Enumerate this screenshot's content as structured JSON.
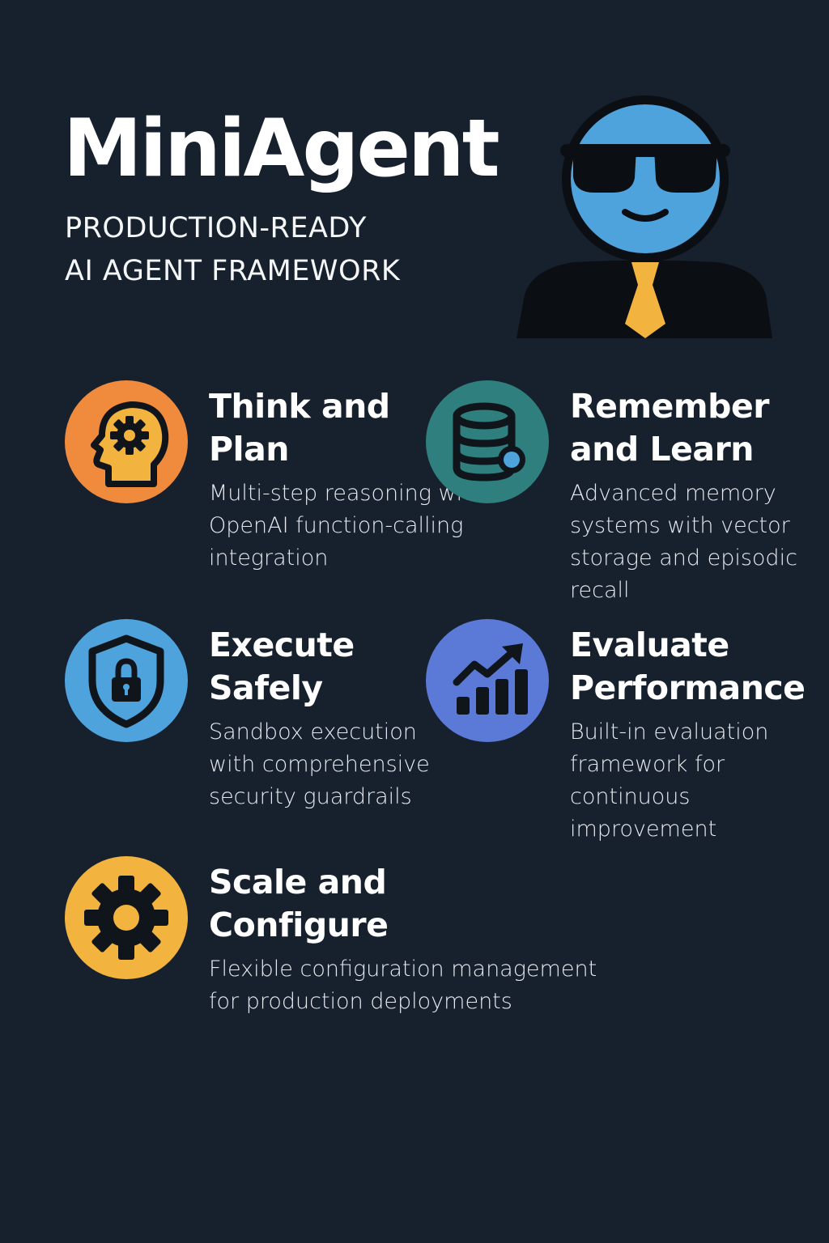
{
  "header": {
    "title": "MiniAgent",
    "subtitle": "PRODUCTION-READY\nAI AGENT FRAMEWORK"
  },
  "mascot": {
    "icon": "agent-mascot-icon"
  },
  "features": [
    {
      "title": "Think and Plan",
      "description": "Multi-step reasoning with OpenAI function-calling integration",
      "icon": "brain-gear-icon",
      "color": "#f08a3c"
    },
    {
      "title": "Remember and Learn",
      "description": "Advanced memory systems with vector storage and episodic recall",
      "icon": "database-icon",
      "color": "#2e7f7d"
    },
    {
      "title": "Execute Safely",
      "description": "Sandbox execution with comprehensive security guardrails",
      "icon": "shield-lock-icon",
      "color": "#4fa3dd"
    },
    {
      "title": "Evaluate Performance",
      "description": "Built-in evaluation framework for continuous improvement",
      "icon": "chart-growth-icon",
      "color": "#5b79d6"
    },
    {
      "title": "Scale and Configure",
      "description": "Flexible configuration management for production deployments",
      "icon": "gear-icon",
      "color": "#f2b43e"
    }
  ]
}
